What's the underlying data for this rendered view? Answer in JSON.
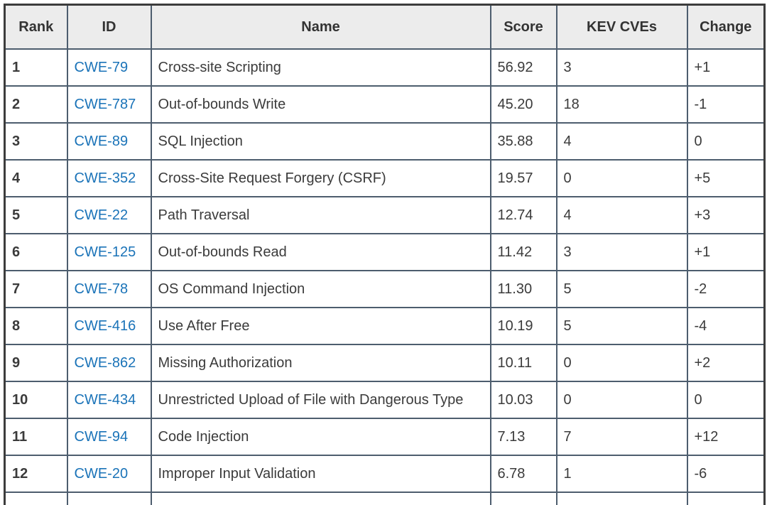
{
  "table": {
    "columns": [
      {
        "key": "rank",
        "label": "Rank"
      },
      {
        "key": "id",
        "label": "ID"
      },
      {
        "key": "name",
        "label": "Name"
      },
      {
        "key": "score",
        "label": "Score"
      },
      {
        "key": "kev",
        "label": "KEV CVEs"
      },
      {
        "key": "change",
        "label": "Change"
      }
    ],
    "rows": [
      {
        "rank": "1",
        "id": "CWE-79",
        "name": "Cross-site Scripting",
        "score": "56.92",
        "kev": "3",
        "change": "+1"
      },
      {
        "rank": "2",
        "id": "CWE-787",
        "name": "Out-of-bounds Write",
        "score": "45.20",
        "kev": "18",
        "change": "-1"
      },
      {
        "rank": "3",
        "id": "CWE-89",
        "name": "SQL Injection",
        "score": "35.88",
        "kev": "4",
        "change": "0"
      },
      {
        "rank": "4",
        "id": "CWE-352",
        "name": "Cross-Site Request Forgery (CSRF)",
        "score": "19.57",
        "kev": "0",
        "change": "+5"
      },
      {
        "rank": "5",
        "id": "CWE-22",
        "name": "Path Traversal",
        "score": "12.74",
        "kev": "4",
        "change": "+3"
      },
      {
        "rank": "6",
        "id": "CWE-125",
        "name": "Out-of-bounds Read",
        "score": "11.42",
        "kev": "3",
        "change": "+1"
      },
      {
        "rank": "7",
        "id": "CWE-78",
        "name": "OS Command Injection",
        "score": "11.30",
        "kev": "5",
        "change": "-2"
      },
      {
        "rank": "8",
        "id": "CWE-416",
        "name": "Use After Free",
        "score": "10.19",
        "kev": "5",
        "change": "-4"
      },
      {
        "rank": "9",
        "id": "CWE-862",
        "name": "Missing Authorization",
        "score": "10.11",
        "kev": "0",
        "change": "+2"
      },
      {
        "rank": "10",
        "id": "CWE-434",
        "name": "Unrestricted Upload of File with Dangerous Type",
        "score": "10.03",
        "kev": "0",
        "change": "0"
      },
      {
        "rank": "11",
        "id": "CWE-94",
        "name": "Code Injection",
        "score": "7.13",
        "kev": "7",
        "change": "+12"
      },
      {
        "rank": "12",
        "id": "CWE-20",
        "name": "Improper Input Validation",
        "score": "6.78",
        "kev": "1",
        "change": "-6"
      }
    ]
  },
  "colors": {
    "link": "#1a73b8",
    "header_bg": "#ececec",
    "inner_border": "#4d5d6e",
    "outer_border": "#3c3c3c",
    "body_text": "#3b3b3b"
  }
}
